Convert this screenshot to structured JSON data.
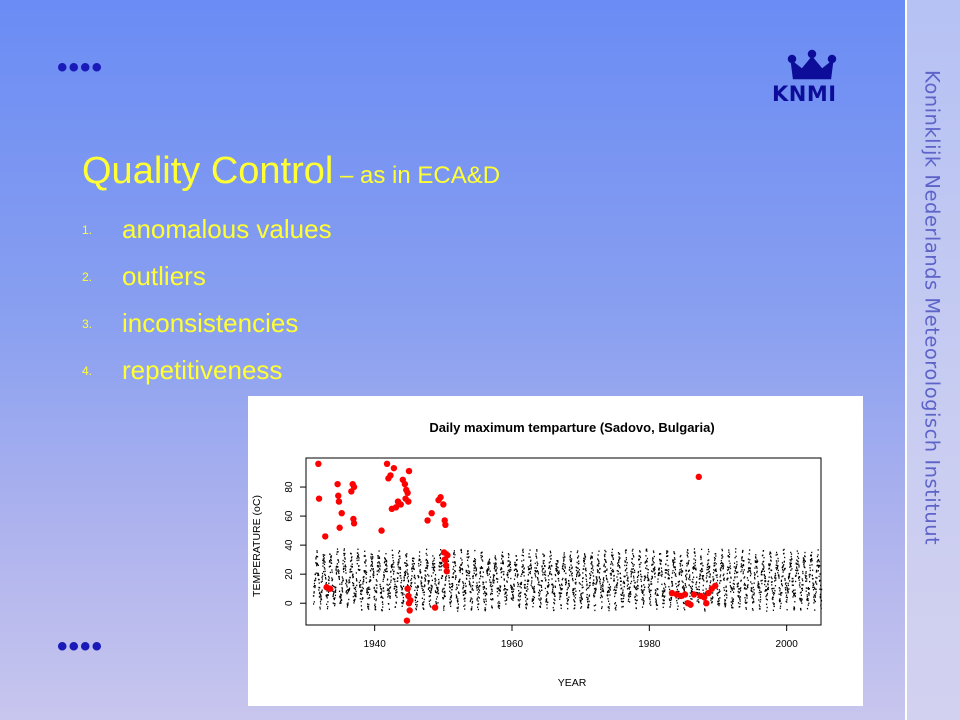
{
  "slide": {
    "title_main": "Quality Control",
    "title_sub": " – as in ECA&D",
    "list": [
      {
        "num": "1.",
        "label": "anomalous values"
      },
      {
        "num": "2.",
        "label": "outliers"
      },
      {
        "num": "3.",
        "label": "inconsistencies"
      },
      {
        "num": "4.",
        "label": "repetitiveness"
      }
    ],
    "dots_top": "••••",
    "dots_bottom": "••••",
    "logo_text": "KNMI",
    "side_text": "Koninklijk Nederlands Meteorologisch Instituut",
    "colors": {
      "title": "#ffff33",
      "dots": "#1a1ab8",
      "logo": "#0d0d99",
      "side_text": "#5d63c9"
    }
  },
  "chart_data": {
    "type": "scatter",
    "title": "Daily maximum temparture (Sadovo, Bulgaria)",
    "xlabel": "YEAR",
    "ylabel": "TEMPERATURE (oC)",
    "xlim": [
      1930,
      2005
    ],
    "ylim": [
      -15,
      100
    ],
    "xticks": [
      1940,
      1960,
      1980,
      2000
    ],
    "yticks": [
      0,
      20,
      40,
      60,
      80
    ],
    "grid": false,
    "series": [
      {
        "color": "#000000",
        "description_values": "daily maxima with annual cycle",
        "x_start": 1931,
        "x_end": 2005,
        "summer_mean": 30,
        "winter_mean": 3
      },
      {
        "color": "#ff0000",
        "points": [
          [
            1931.8,
            96
          ],
          [
            1931.9,
            72
          ],
          [
            1932.8,
            46
          ],
          [
            1933.0,
            11
          ],
          [
            1933.5,
            10
          ],
          [
            1934.6,
            82
          ],
          [
            1934.7,
            74
          ],
          [
            1934.8,
            70
          ],
          [
            1934.9,
            52
          ],
          [
            1935.2,
            62
          ],
          [
            1936.6,
            77
          ],
          [
            1936.8,
            82
          ],
          [
            1937.0,
            80
          ],
          [
            1936.9,
            58
          ],
          [
            1937.0,
            55
          ],
          [
            1941.0,
            50
          ],
          [
            1941.8,
            96
          ],
          [
            1942.0,
            86
          ],
          [
            1942.3,
            88
          ],
          [
            1942.5,
            65
          ],
          [
            1942.8,
            93
          ],
          [
            1943.1,
            66
          ],
          [
            1943.4,
            70
          ],
          [
            1943.8,
            68
          ],
          [
            1944.1,
            85
          ],
          [
            1944.4,
            82
          ],
          [
            1944.6,
            78
          ],
          [
            1944.8,
            76
          ],
          [
            1944.5,
            72
          ],
          [
            1944.9,
            70
          ],
          [
            1945.0,
            91
          ],
          [
            1944.8,
            10
          ],
          [
            1944.9,
            5
          ],
          [
            1945.0,
            0
          ],
          [
            1945.1,
            -5
          ],
          [
            1944.7,
            -12
          ],
          [
            1945.2,
            2
          ],
          [
            1947.7,
            57
          ],
          [
            1948.3,
            62
          ],
          [
            1948.8,
            -3
          ],
          [
            1949.3,
            71
          ],
          [
            1949.6,
            73
          ],
          [
            1950.0,
            68
          ],
          [
            1950.2,
            57
          ],
          [
            1950.3,
            54
          ],
          [
            1950.1,
            35
          ],
          [
            1950.2,
            30
          ],
          [
            1950.4,
            26
          ],
          [
            1950.5,
            22
          ],
          [
            1950.6,
            33
          ],
          [
            1983.3,
            7
          ],
          [
            1984.0,
            6
          ],
          [
            1984.6,
            5
          ],
          [
            1985.2,
            6
          ],
          [
            1985.6,
            0
          ],
          [
            1986.0,
            -1
          ],
          [
            1986.5,
            6
          ],
          [
            1987.2,
            87
          ],
          [
            1987.5,
            5
          ],
          [
            1988.0,
            4
          ],
          [
            1988.3,
            0
          ],
          [
            1988.6,
            7
          ],
          [
            1989.1,
            10
          ],
          [
            1989.6,
            12
          ]
        ]
      }
    ]
  }
}
